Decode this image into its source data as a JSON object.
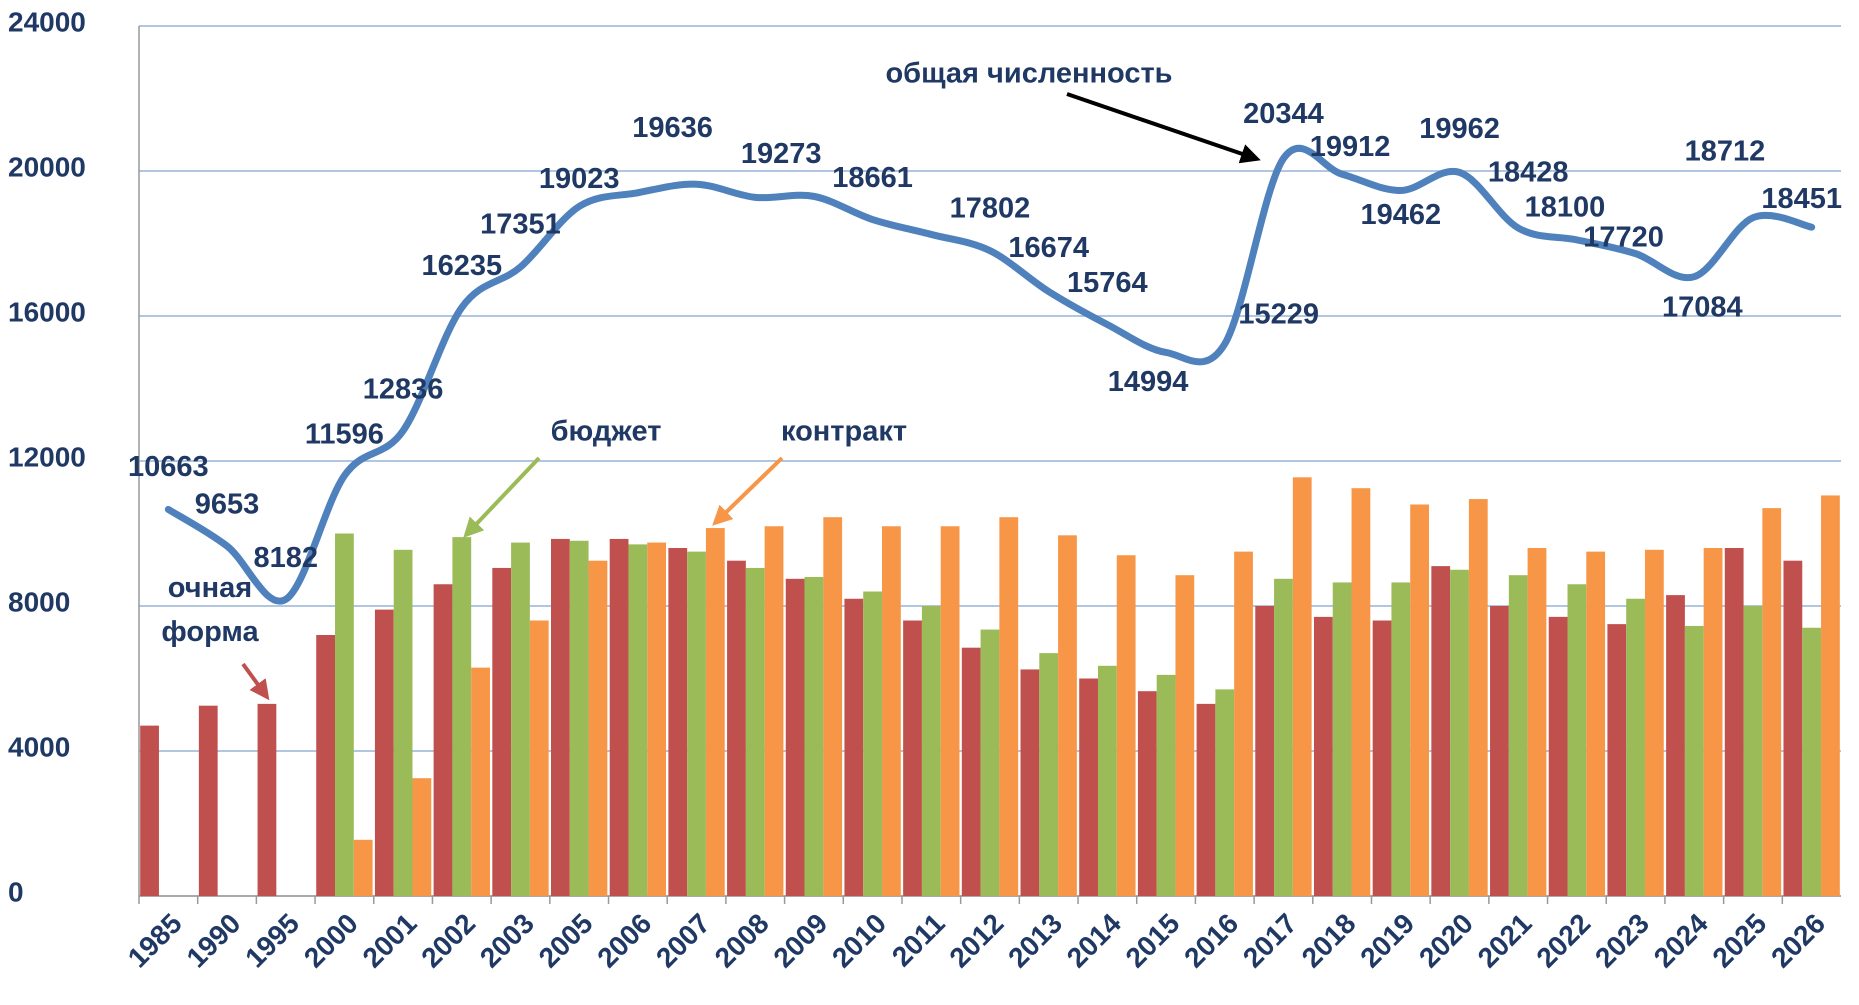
{
  "chart_data": {
    "type": "bar_line",
    "categories": [
      "1985",
      "1990",
      "1995",
      "2000",
      "2001",
      "2002",
      "2003",
      "2005",
      "2006",
      "2007",
      "2008",
      "2009",
      "2010",
      "2011",
      "2012",
      "2013",
      "2014",
      "2015",
      "2016",
      "2017",
      "2018",
      "2019",
      "2020",
      "2021",
      "2022",
      "2023",
      "2024",
      "2025",
      "2026"
    ],
    "series": [
      {
        "name": "очная форма",
        "type": "bar",
        "color": "#c0504d",
        "values": [
          4700,
          5250,
          5300,
          7200,
          7900,
          8600,
          9050,
          9850,
          9850,
          9600,
          9250,
          8750,
          8200,
          7600,
          6850,
          6250,
          6000,
          5650,
          5300,
          8000,
          7700,
          7600,
          9100,
          8000,
          7700,
          7500,
          8300,
          9600,
          9250
        ]
      },
      {
        "name": "бюджет",
        "type": "bar",
        "color": "#9bbb59",
        "values": [
          null,
          null,
          null,
          10000,
          9550,
          9900,
          9750,
          9800,
          9700,
          9500,
          9050,
          8800,
          8400,
          8000,
          7350,
          6700,
          6350,
          6100,
          5700,
          8750,
          8650,
          8650,
          9000,
          8850,
          8600,
          8200,
          7450,
          8000,
          7400
        ]
      },
      {
        "name": "контракт",
        "type": "bar",
        "color": "#f79646",
        "values": [
          null,
          null,
          null,
          1550,
          3250,
          6300,
          7600,
          9250,
          9750,
          10150,
          10200,
          10450,
          10200,
          10200,
          10450,
          9950,
          9400,
          8850,
          9500,
          11550,
          11250,
          10800,
          10950,
          9600,
          9500,
          9550,
          9600,
          10700,
          11050
        ]
      },
      {
        "name": "общая численность",
        "type": "line",
        "color": "#4f81bd",
        "values": [
          10663,
          9653,
          8182,
          11596,
          12836,
          16235,
          17351,
          19023,
          19400,
          19636,
          19273,
          19300,
          18661,
          18250,
          17802,
          16674,
          15764,
          14994,
          15229,
          20344,
          19912,
          19462,
          19962,
          18428,
          18100,
          17720,
          17084,
          18712,
          18451
        ],
        "value_labels": [
          "10663",
          "9653",
          "8182",
          "11596",
          "12836",
          "16235",
          "17351",
          "19023",
          null,
          "19636",
          "19273",
          null,
          "18661",
          null,
          "17802",
          "16674",
          "15764",
          "14994",
          "15229",
          "20344",
          "19912",
          "19462",
          "19962",
          "18428",
          "18100",
          "17720",
          "17084",
          "18712",
          "18451"
        ]
      }
    ],
    "ylim": [
      0,
      24000
    ],
    "yticks": [
      0,
      4000,
      8000,
      12000,
      16000,
      20000,
      24000
    ],
    "grid": true
  }
}
